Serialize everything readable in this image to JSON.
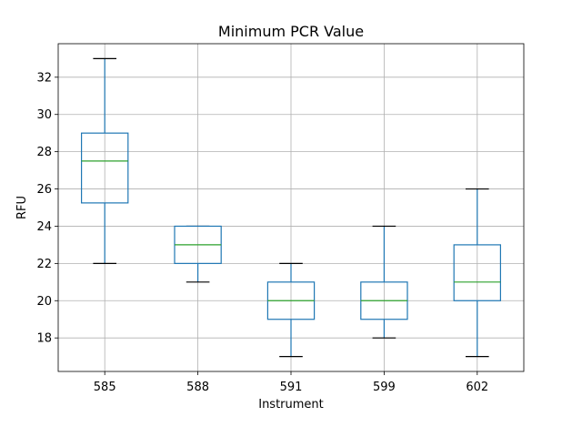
{
  "chart_data": {
    "type": "box",
    "title": "Minimum PCR Value",
    "xlabel": "Instrument",
    "ylabel": "RFU",
    "ylim": [
      16.2,
      33.8
    ],
    "yticks": [
      18,
      20,
      22,
      24,
      26,
      28,
      30,
      32
    ],
    "grid": true,
    "colors": {
      "box": "#1f77b4",
      "median": "#2ca02c",
      "whisker": "#1f77b4",
      "cap": "#000000"
    },
    "categories": [
      "585",
      "588",
      "591",
      "599",
      "602"
    ],
    "boxes": [
      {
        "name": "585",
        "whislo": 22,
        "q1": 25.25,
        "med": 27.5,
        "q3": 29,
        "whishi": 33
      },
      {
        "name": "588",
        "whislo": 21,
        "q1": 22,
        "med": 23,
        "q3": 24,
        "whishi": 24
      },
      {
        "name": "591",
        "whislo": 17,
        "q1": 19,
        "med": 20,
        "q3": 21,
        "whishi": 22
      },
      {
        "name": "599",
        "whislo": 18,
        "q1": 19,
        "med": 20,
        "q3": 21,
        "whishi": 24
      },
      {
        "name": "602",
        "whislo": 17,
        "q1": 20,
        "med": 21,
        "q3": 23,
        "whishi": 26
      }
    ]
  }
}
